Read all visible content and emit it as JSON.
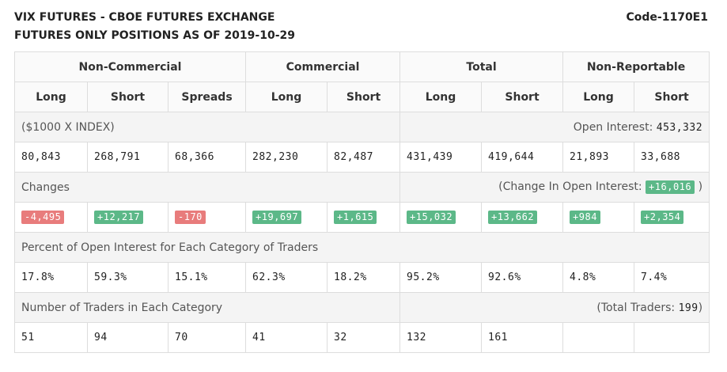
{
  "header": {
    "line1": "VIX FUTURES - CBOE FUTURES EXCHANGE",
    "line2": "FUTURES ONLY POSITIONS AS OF 2019-10-29",
    "code": "Code-1170E1"
  },
  "groups": {
    "noncommercial": "Non-Commercial",
    "commercial": "Commercial",
    "total": "Total",
    "nonreportable": "Non-Reportable"
  },
  "columns": [
    "Long",
    "Short",
    "Spreads",
    "Long",
    "Short",
    "Long",
    "Short",
    "Long",
    "Short"
  ],
  "positions": {
    "unit_label": "($1000 X INDEX)",
    "open_interest_label": "Open Interest:",
    "open_interest_value": "453,332",
    "values": [
      "80,843",
      "268,791",
      "68,366",
      "282,230",
      "82,487",
      "431,439",
      "419,644",
      "21,893",
      "33,688"
    ]
  },
  "changes": {
    "label": "Changes",
    "oi_label_open": "(Change In Open Interest:",
    "oi_value": "+16,016",
    "oi_label_close": ")",
    "values": [
      "-4,495",
      "+12,217",
      "-170",
      "+19,697",
      "+1,615",
      "+15,032",
      "+13,662",
      "+984",
      "+2,354"
    ]
  },
  "percent": {
    "label": "Percent of Open Interest for Each Category of Traders",
    "values": [
      "17.8%",
      "59.3%",
      "15.1%",
      "62.3%",
      "18.2%",
      "95.2%",
      "92.6%",
      "4.8%",
      "7.4%"
    ]
  },
  "traders": {
    "label": "Number of Traders in Each Category",
    "total_label_open": "(Total Traders:",
    "total_value": "199",
    "total_label_close": ")",
    "values": [
      "51",
      "94",
      "70",
      "41",
      "32",
      "132",
      "161",
      "",
      ""
    ]
  },
  "colors": {
    "positive": "#5cb888",
    "negative": "#e87c7c",
    "border": "#dddddd"
  }
}
